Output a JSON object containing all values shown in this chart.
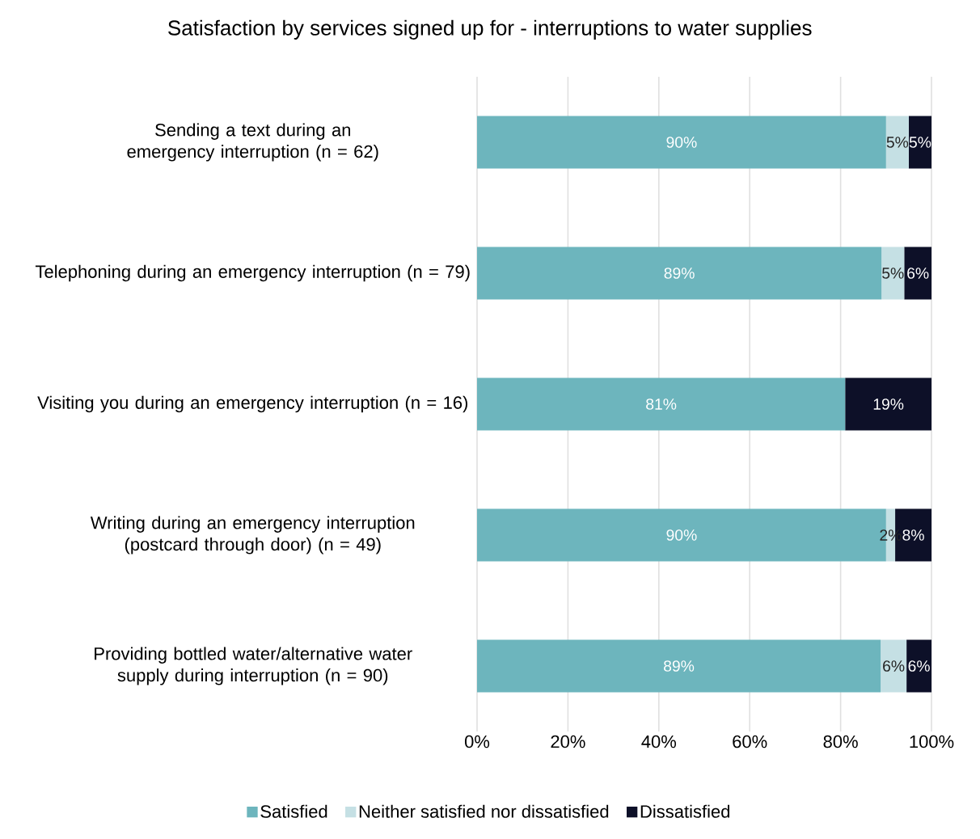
{
  "chart_data": {
    "type": "bar",
    "orientation": "horizontal",
    "stacked": true,
    "title": "Satisfaction by services signed up for - interruptions to water supplies",
    "categories": [
      "Sending a text during an emergency interruption (n = 62)",
      "Telephoning during an emergency interruption (n = 79)",
      "Visiting you during an emergency interruption (n = 16)",
      "Writing during an emergency interruption (postcard through door) (n = 49)",
      "Providing bottled water/alternative water supply during interruption (n = 90)"
    ],
    "series": [
      {
        "name": "Satisfied",
        "color": "#6db5bd",
        "values": [
          90,
          89,
          81,
          90,
          88.8
        ],
        "value_labels": [
          "90%",
          "89%",
          "81%",
          "90%",
          "89%"
        ]
      },
      {
        "name": "Neither satisfied nor dissatisfied",
        "color": "#c5e0e4",
        "values": [
          5,
          5,
          0,
          2,
          5.7
        ],
        "value_labels": [
          "5%",
          "5%",
          null,
          "2%",
          "6%"
        ]
      },
      {
        "name": "Dissatisfied",
        "color": "#0d1028",
        "values": [
          5,
          6,
          19,
          8,
          5.5
        ],
        "value_labels": [
          "5%",
          "6%",
          "19%",
          "8%",
          "6%"
        ]
      }
    ],
    "xlim": [
      0,
      100
    ],
    "xticks": [
      {
        "value": 0,
        "label": "0%"
      },
      {
        "value": 20,
        "label": "20%"
      },
      {
        "value": 40,
        "label": "40%"
      },
      {
        "value": 60,
        "label": "60%"
      },
      {
        "value": 80,
        "label": "80%"
      },
      {
        "value": 100,
        "label": "100%"
      }
    ],
    "grid": "x",
    "legend": "bottom"
  }
}
